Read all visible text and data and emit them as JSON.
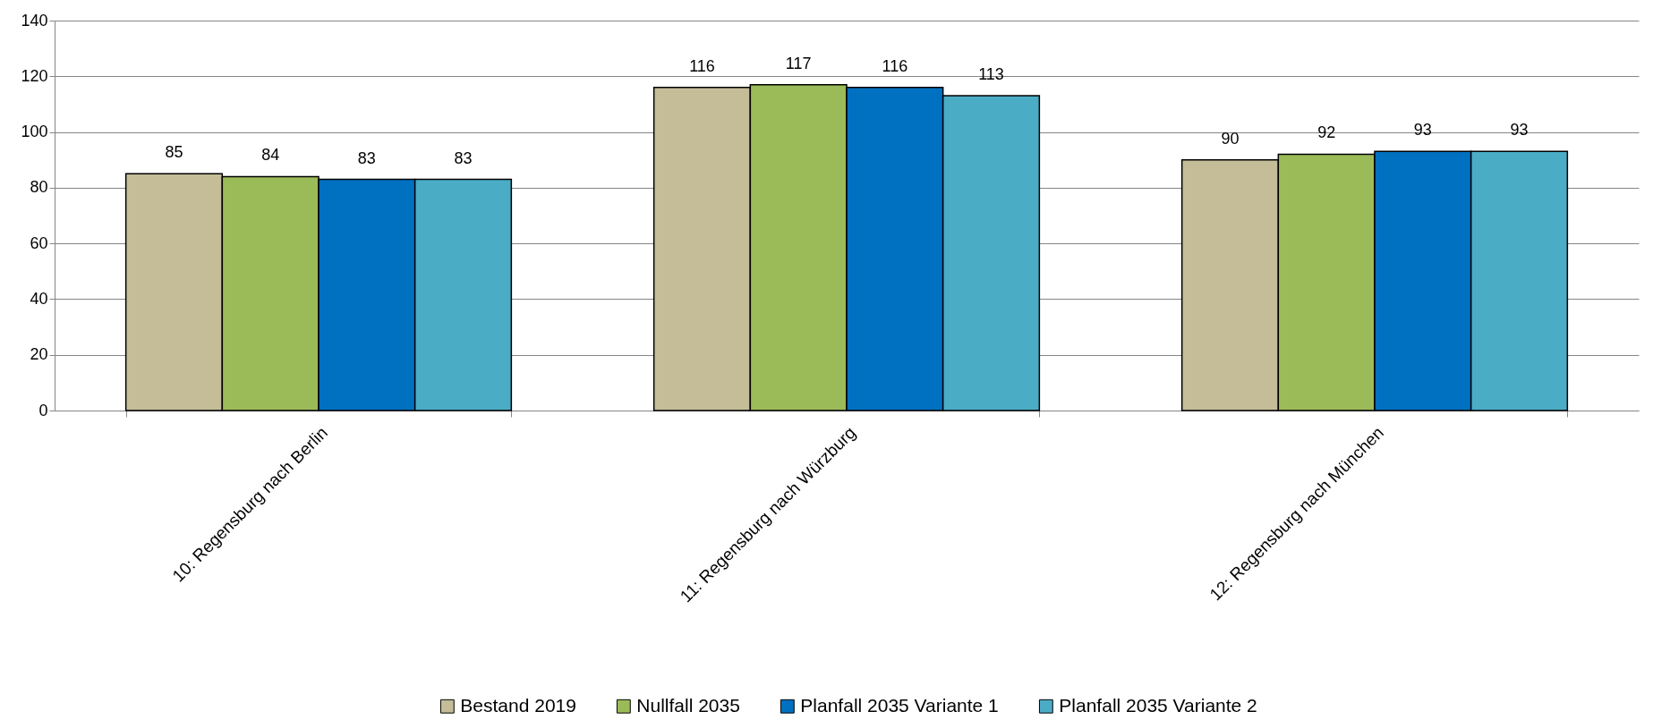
{
  "chart_data": {
    "type": "bar",
    "categories": [
      "10: Regensburg nach Berlin",
      "11: Regensburg nach Würzburg",
      "12: Regensburg nach München"
    ],
    "series": [
      {
        "name": "Bestand 2019",
        "color": "#c4bd97",
        "values": [
          85,
          116,
          90
        ]
      },
      {
        "name": "Nullfall 2035",
        "color": "#9bbb59",
        "values": [
          84,
          117,
          92
        ]
      },
      {
        "name": "Planfall 2035 Variante 1",
        "color": "#0070c0",
        "values": [
          83,
          116,
          93
        ]
      },
      {
        "name": "Planfall 2035 Variante 2",
        "color": "#4bacc6",
        "values": [
          83,
          113,
          93
        ]
      }
    ],
    "ylim": [
      0,
      140
    ],
    "yticks": [
      0,
      20,
      40,
      60,
      80,
      100,
      120,
      140
    ],
    "grid": "y",
    "legend": "bottom",
    "data_labels": true
  }
}
